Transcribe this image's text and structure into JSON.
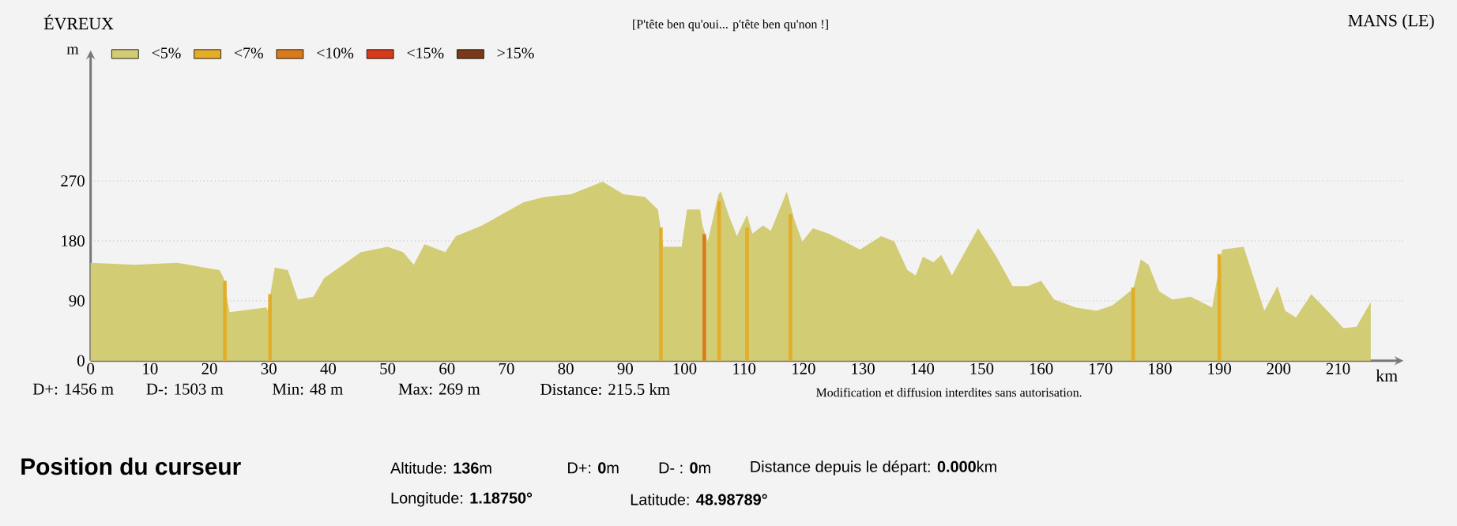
{
  "chart_data": {
    "type": "area",
    "title": "[P'tête ben qu'oui... p'tête ben qu'non !]",
    "ylabel": "m",
    "xlabel": "km",
    "x": [
      0,
      7.5,
      14.6,
      21.7,
      22.4,
      23.4,
      29.6,
      29.8,
      31,
      33.2,
      34.9,
      37.5,
      39.3,
      45.5,
      50,
      52.6,
      54.4,
      56.2,
      59.7,
      61.5,
      65.9,
      72.9,
      76.5,
      80.9,
      86.2,
      89.7,
      93.3,
      95.5,
      96.4,
      99.5,
      100.4,
      102.6,
      103,
      103.9,
      105.7,
      106.1,
      107.4,
      108.8,
      110.5,
      111.4,
      113.2,
      114.5,
      117.2,
      118.5,
      119.8,
      121.6,
      124.2,
      126.9,
      129.5,
      133.1,
      135.3,
      137.5,
      138.9,
      140.1,
      141.9,
      143.2,
      145,
      149.4,
      152.5,
      155.2,
      157.8,
      160,
      162.2,
      165.8,
      169.3,
      172,
      175.5,
      176.8,
      178.1,
      179.9,
      182.1,
      185.2,
      188.8,
      190.5,
      194.1,
      197.6,
      199.8,
      201.1,
      202.9,
      205.5,
      208.2,
      210.9,
      213.1,
      215.5
    ],
    "series": [
      {
        "name": "<5%",
        "color": "#d2cc74",
        "values": [
          147,
          144,
          147,
          136,
          124,
          73,
          80,
          75,
          140,
          136,
          92,
          96,
          124,
          163,
          171,
          163,
          144,
          175,
          163,
          187,
          203,
          238,
          246,
          250,
          269,
          250,
          246,
          227,
          171,
          171,
          227,
          227,
          203,
          179,
          250,
          254,
          219,
          187,
          219,
          191,
          203,
          195,
          254,
          211,
          179,
          199,
          191,
          179,
          167,
          187,
          179,
          136,
          128,
          156,
          148,
          159,
          128,
          199,
          156,
          112,
          112,
          120,
          92,
          80,
          75,
          83,
          108,
          152,
          144,
          104,
          92,
          96,
          80,
          167,
          171,
          75,
          112,
          75,
          65,
          100,
          75,
          49,
          51,
          88
        ]
      },
      {
        "name": "<7%",
        "type": "bar",
        "color": "#e3ad2a",
        "x": [
          22.6,
          30.2,
          96,
          105.8,
          110.5,
          117.8,
          175.5,
          190
        ],
        "values": [
          120,
          100,
          200,
          240,
          200,
          220,
          110,
          160
        ]
      },
      {
        "name": "<10%",
        "type": "bar",
        "color": "#d97a1c",
        "x": [
          103.3
        ],
        "values": [
          190
        ]
      },
      {
        "name": "<15%",
        "type": "bar",
        "color": "#d63a1a",
        "values": [
          null,
          null,
          null,
          null,
          null,
          null,
          null,
          null,
          null,
          null,
          null,
          null,
          null,
          null,
          null,
          null,
          null,
          null,
          null,
          null,
          null,
          null,
          null,
          null,
          null,
          null,
          null,
          null,
          null,
          null,
          null,
          null,
          null,
          null,
          null,
          null,
          null,
          null,
          null,
          null,
          null,
          null,
          null,
          null,
          null,
          null,
          null,
          null,
          null,
          null,
          null,
          null,
          null,
          null,
          null,
          null,
          null,
          null,
          null,
          null,
          null,
          null,
          null,
          null,
          null,
          null,
          null,
          null,
          null,
          null,
          null,
          null,
          null,
          null,
          null,
          null,
          null,
          null,
          null,
          null,
          null,
          null,
          null,
          null
        ]
      },
      {
        "name": ">15%",
        "type": "bar",
        "color": "#7a3a1a",
        "values": [
          null,
          null,
          null,
          null,
          null,
          null,
          null,
          null,
          null,
          null,
          null,
          null,
          null,
          null,
          null,
          null,
          null,
          null,
          null,
          null,
          null,
          null,
          null,
          null,
          null,
          null,
          null,
          null,
          null,
          null,
          null,
          null,
          null,
          null,
          null,
          null,
          null,
          null,
          null,
          null,
          null,
          null,
          null,
          null,
          null,
          null,
          null,
          null,
          null,
          null,
          null,
          null,
          null,
          null,
          null,
          null,
          null,
          null,
          null,
          null,
          null,
          null,
          null,
          null,
          null,
          null,
          null,
          null,
          null,
          null,
          null,
          null,
          null,
          null,
          null,
          null,
          null,
          null,
          null,
          null,
          null,
          null,
          null,
          null
        ]
      }
    ],
    "xlim": [
      0,
      221
    ],
    "ylim": [
      0,
      466
    ],
    "xticks": [
      0,
      10,
      20,
      30,
      40,
      50,
      60,
      70,
      80,
      90,
      100,
      110,
      120,
      130,
      140,
      150,
      160,
      170,
      180,
      190,
      200,
      210
    ],
    "yticks": [
      0,
      90,
      180,
      270
    ],
    "grid": "y",
    "legend": "top left",
    "annotations": [
      "ÉVREUX",
      "MANS (LE)",
      "D+: 1456 m",
      "D-: 1503 m",
      "Min: 48 m",
      "Max: 269 m",
      "Distance: 215.5 km",
      "Modification et diffusion interdites sans autorisation.",
      "Position du curseur",
      "Altitude: **136**m",
      "D+:  **0**m",
      "D- : **0**m",
      "Distance depuis le départ: **0.000**km",
      "Longitude: **1.18750°**",
      "Latitude: **48.98789°**"
    ]
  }
}
